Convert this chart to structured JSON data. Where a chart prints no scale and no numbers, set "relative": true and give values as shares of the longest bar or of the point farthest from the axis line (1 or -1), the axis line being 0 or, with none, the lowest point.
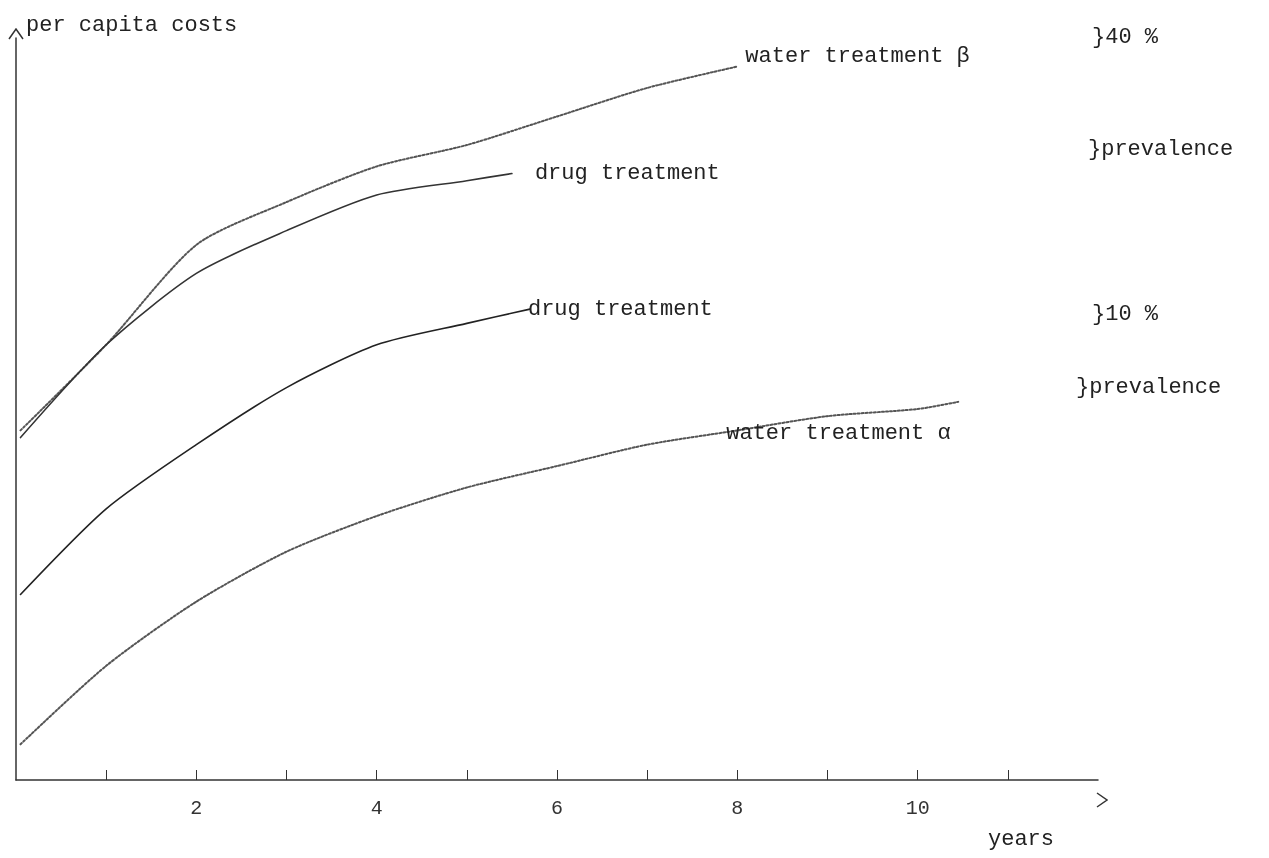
{
  "chart_data": {
    "type": "line",
    "relative": true,
    "ylabel": "per capita costs",
    "xlabel": "years",
    "xlim": [
      0,
      12
    ],
    "xticks": [
      {
        "value": 1,
        "label": null
      },
      2,
      {
        "value": 3,
        "label": null
      },
      4,
      {
        "value": 5,
        "label": null
      },
      6,
      {
        "value": 7,
        "label": null
      },
      8,
      {
        "value": 9,
        "label": null
      },
      10,
      {
        "value": 11,
        "label": null
      }
    ],
    "grid": false,
    "legend": false,
    "marker": "none",
    "series": [
      {
        "name": "water treatment β",
        "color": "#555555",
        "line_style": "dotted",
        "x": [
          0.05,
          1,
          2,
          3,
          4,
          5,
          6,
          7,
          8
        ],
        "values": [
          0.49,
          0.61,
          0.75,
          0.81,
          0.86,
          0.89,
          0.93,
          0.97,
          1
        ]
      },
      {
        "name": "drug treatment",
        "color": "#333333",
        "line_style": "solid",
        "x": [
          0.05,
          1,
          2,
          3,
          4,
          5,
          5.5
        ],
        "values": [
          0.48,
          0.61,
          0.71,
          0.77,
          0.82,
          0.84,
          0.85
        ]
      },
      {
        "name": "drug treatment",
        "color": "#222222",
        "line_style": "solid",
        "x": [
          0.05,
          1,
          2,
          3,
          4,
          5,
          5.7
        ],
        "values": [
          0.26,
          0.38,
          0.47,
          0.55,
          0.61,
          0.64,
          0.66
        ]
      },
      {
        "name": "water treatment α",
        "color": "#555555",
        "line_style": "dotted",
        "x": [
          0.05,
          1,
          2,
          3,
          4,
          5,
          6,
          7,
          8,
          9,
          10,
          10.45
        ],
        "values": [
          0.05,
          0.16,
          0.25,
          0.32,
          0.37,
          0.41,
          0.44,
          0.47,
          0.49,
          0.51,
          0.52,
          0.53
        ]
      }
    ],
    "annotations": [
      "}40 %",
      "}prevalence",
      "}10 %",
      "}prevalence"
    ]
  }
}
